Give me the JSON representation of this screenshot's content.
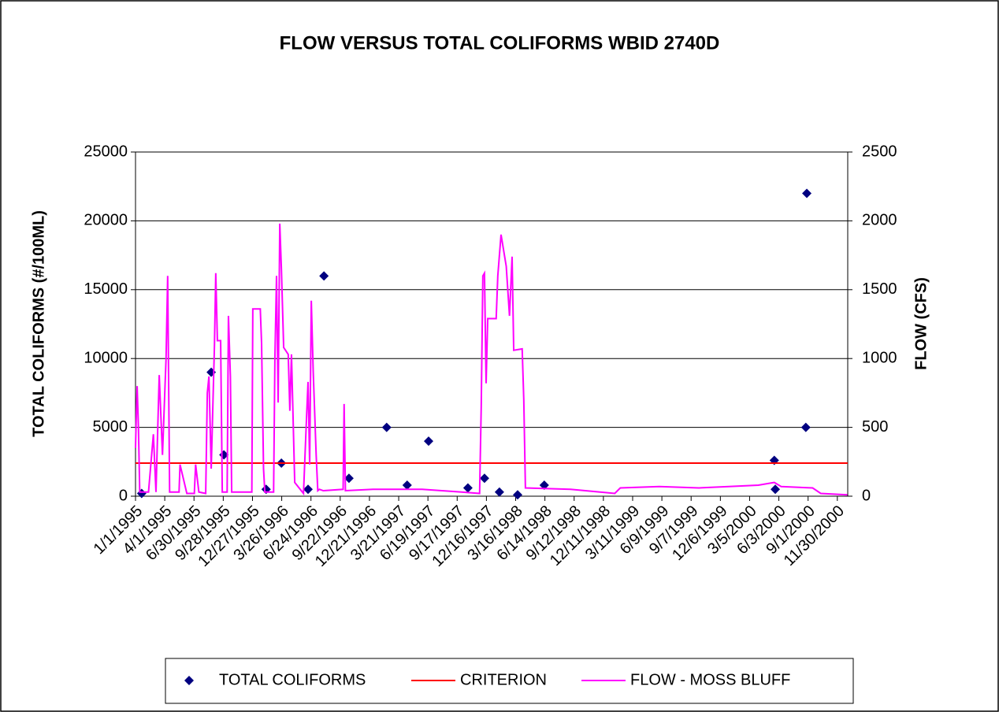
{
  "chart_data": {
    "type": "line",
    "title": "FLOW VERSUS TOTAL COLIFORMS WBID 2740D",
    "y_label": "TOTAL COLIFORMS  (#/100ML)",
    "y2_label": "FLOW  (CFS)",
    "xlim": [
      "1995-01-01",
      "2001-01-01"
    ],
    "xticks": [
      {
        "value": "1995-01-01",
        "label": "1/1/1995"
      },
      {
        "value": "1995-04-01",
        "label": "4/1/1995"
      },
      {
        "value": "1995-06-30",
        "label": "6/30/1995"
      },
      {
        "value": "1995-09-28",
        "label": "9/28/1995"
      },
      {
        "value": "1995-12-27",
        "label": "12/27/1995"
      },
      {
        "value": "1996-03-26",
        "label": "3/26/1996"
      },
      {
        "value": "1996-06-24",
        "label": "6/24/1996"
      },
      {
        "value": "1996-09-22",
        "label": "9/22/1996"
      },
      {
        "value": "1996-12-21",
        "label": "12/21/1996"
      },
      {
        "value": "1997-03-21",
        "label": "3/21/1997"
      },
      {
        "value": "1997-06-19",
        "label": "6/19/1997"
      },
      {
        "value": "1997-09-17",
        "label": "9/17/1997"
      },
      {
        "value": "1997-12-16",
        "label": "12/16/1997"
      },
      {
        "value": "1998-03-16",
        "label": "3/16/1998"
      },
      {
        "value": "1998-06-14",
        "label": "6/14/1998"
      },
      {
        "value": "1998-09-12",
        "label": "9/12/1998"
      },
      {
        "value": "1998-12-11",
        "label": "12/11/1998"
      },
      {
        "value": "1999-03-11",
        "label": "3/11/1999"
      },
      {
        "value": "1999-06-09",
        "label": "6/9/1999"
      },
      {
        "value": "1999-09-07",
        "label": "9/7/1999"
      },
      {
        "value": "1999-12-06",
        "label": "12/6/1999"
      },
      {
        "value": "2000-03-05",
        "label": "3/5/2000"
      },
      {
        "value": "2000-06-03",
        "label": "6/3/2000"
      },
      {
        "value": "2000-09-01",
        "label": "9/1/2000"
      },
      {
        "value": "2000-11-30",
        "label": "11/30/2000"
      }
    ],
    "ylim": [
      0,
      25000
    ],
    "yticks": [
      0,
      5000,
      10000,
      15000,
      20000,
      25000
    ],
    "y2lim": [
      0,
      2500
    ],
    "y2ticks": [
      0,
      500,
      1000,
      1500,
      2000,
      2500
    ],
    "grid": true,
    "legend": "bottom",
    "series": [
      {
        "name": "TOTAL COLIFORMS",
        "color": "#000080",
        "kind": "scatter",
        "x": [
          "1995-01-20",
          "1995-08-22",
          "1995-09-30",
          "1996-02-07",
          "1996-03-25",
          "1996-06-15",
          "1996-08-03",
          "1996-10-19",
          "1997-02-12",
          "1997-04-16",
          "1997-06-21",
          "1997-10-20",
          "1997-12-10",
          "1998-01-25",
          "1998-03-22",
          "1998-06-12",
          "2000-05-20",
          "2000-05-23",
          "2000-08-25",
          "2000-08-28"
        ],
        "values": [
          200,
          9000,
          3000,
          500,
          2400,
          500,
          16000,
          1300,
          5000,
          800,
          4000,
          600,
          1300,
          300,
          100,
          800,
          2600,
          500,
          5000,
          22000
        ]
      },
      {
        "name": "CRITERION",
        "color": "#ff0000",
        "kind": "line",
        "x": [
          "1995-01-01",
          "2001-01-01"
        ],
        "values": [
          2400,
          2400
        ]
      },
      {
        "name": "FLOW - MOSS BLUFF",
        "color": "#ff00ff",
        "kind": "line",
        "axis": "y2",
        "x": [
          "1995-01-01",
          "1995-01-03",
          "1995-01-06",
          "1995-01-10",
          "1995-01-14",
          "1995-02-10",
          "1995-02-25",
          "1995-03-05",
          "1995-03-15",
          "1995-03-25",
          "1995-04-05",
          "1995-04-10",
          "1995-04-16",
          "1995-05-15",
          "1995-05-18",
          "1995-05-28",
          "1995-06-08",
          "1995-07-01",
          "1995-07-05",
          "1995-07-15",
          "1995-08-05",
          "1995-08-10",
          "1995-08-15",
          "1995-08-22",
          "1995-09-01",
          "1995-09-05",
          "1995-09-10",
          "1995-09-20",
          "1995-09-25",
          "1995-10-10",
          "1995-10-14",
          "1995-10-20",
          "1995-10-24",
          "1995-12-25",
          "1995-12-28",
          "1996-01-20",
          "1996-01-24",
          "1996-01-30",
          "1996-02-03",
          "1996-03-01",
          "1996-03-05",
          "1996-03-10",
          "1996-03-15",
          "1996-03-20",
          "1996-03-25",
          "1996-04-01",
          "1996-04-15",
          "1996-04-20",
          "1996-04-25",
          "1996-05-05",
          "1996-06-01",
          "1996-06-10",
          "1996-06-15",
          "1996-06-20",
          "1996-06-25",
          "1996-07-01",
          "1996-07-10",
          "1996-07-15",
          "1996-07-20",
          "1996-08-01",
          "1996-10-01",
          "1996-10-04",
          "1996-10-08",
          "1997-01-01",
          "1997-06-01",
          "1997-10-01",
          "1997-11-25",
          "1997-11-30",
          "1997-12-05",
          "1997-12-10",
          "1997-12-15",
          "1997-12-20",
          "1998-01-15",
          "1998-01-20",
          "1998-01-30",
          "1998-02-15",
          "1998-02-25",
          "1998-03-05",
          "1998-03-10",
          "1998-04-05",
          "1998-04-10",
          "1998-04-15",
          "1998-09-01",
          "1998-12-01",
          "1999-01-15",
          "1999-02-01",
          "1999-06-01",
          "1999-10-01",
          "2000-01-01",
          "2000-04-01",
          "2000-05-20",
          "2000-06-10",
          "2000-09-15",
          "2000-10-10",
          "2000-12-31"
        ],
        "values": [
          350,
          550,
          800,
          500,
          30,
          30,
          450,
          30,
          880,
          300,
          1000,
          1600,
          30,
          30,
          230,
          130,
          20,
          20,
          230,
          30,
          20,
          750,
          870,
          200,
          1100,
          1620,
          1130,
          1130,
          30,
          30,
          1310,
          870,
          30,
          30,
          1360,
          1360,
          1110,
          200,
          30,
          30,
          1000,
          1600,
          680,
          1980,
          1650,
          1080,
          1030,
          620,
          1030,
          100,
          20,
          550,
          830,
          230,
          1420,
          900,
          300,
          40,
          50,
          40,
          50,
          670,
          40,
          50,
          50,
          30,
          20,
          650,
          1600,
          1620,
          820,
          1290,
          1290,
          1600,
          1900,
          1670,
          1310,
          1740,
          1060,
          1070,
          700,
          60,
          50,
          30,
          20,
          60,
          70,
          60,
          70,
          80,
          100,
          70,
          60,
          20,
          10
        ]
      }
    ]
  }
}
